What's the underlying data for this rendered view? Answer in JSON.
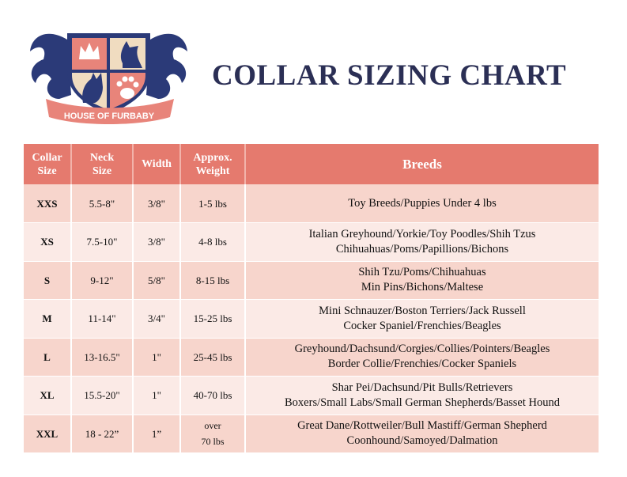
{
  "logo": {
    "text": "HOUSE OF FURBABY",
    "colors": {
      "navy": "#2b3a78",
      "coral": "#e8847a",
      "cream": "#f0dcc0"
    }
  },
  "title": "COLLAR SIZING CHART",
  "colors": {
    "header": "#e57a6e",
    "row_odd": "#f7d5cc",
    "row_even": "#fbeae6",
    "title": "#2b2f55"
  },
  "table": {
    "headers": [
      [
        "Collar",
        "Size"
      ],
      [
        "Neck",
        "Size"
      ],
      [
        "Width"
      ],
      [
        "Approx.",
        "Weight"
      ],
      [
        "Breeds"
      ]
    ],
    "rows": [
      {
        "size": "XXS",
        "neck": "5.5-8\"",
        "width": "3/8\"",
        "weight": [
          "1-5 lbs"
        ],
        "breeds": [
          "Toy Breeds/Puppies Under 4 lbs"
        ]
      },
      {
        "size": "XS",
        "neck": "7.5-10\"",
        "width": "3/8\"",
        "weight": [
          "4-8 lbs"
        ],
        "breeds": [
          "Italian Greyhound/Yorkie/Toy Poodles/Shih Tzus",
          "Chihuahuas/Poms/Papillions/Bichons"
        ]
      },
      {
        "size": "S",
        "neck": "9-12\"",
        "width": "5/8\"",
        "weight": [
          "8-15 lbs"
        ],
        "breeds": [
          "Shih Tzu/Poms/Chihuahuas",
          "Min Pins/Bichons/Maltese"
        ]
      },
      {
        "size": "M",
        "neck": "11-14\"",
        "width": "3/4\"",
        "weight": [
          "15-25 lbs"
        ],
        "breeds": [
          "Mini Schnauzer/Boston Terriers/Jack Russell",
          "Cocker Spaniel/Frenchies/Beagles"
        ]
      },
      {
        "size": "L",
        "neck": "13-16.5\"",
        "width": "1\"",
        "weight": [
          "25-45 lbs"
        ],
        "breeds": [
          "Greyhound/Dachsund/Corgies/Collies/Pointers/Beagles",
          "Border Collie/Frenchies/Cocker Spaniels"
        ]
      },
      {
        "size": "XL",
        "neck": "15.5-20\"",
        "width": "1\"",
        "weight": [
          "40-70 lbs"
        ],
        "breeds": [
          "Shar Pei/Dachsund/Pit Bulls/Retrievers",
          "Boxers/Small Labs/Small German Shepherds/Basset Hound"
        ]
      },
      {
        "size": "XXL",
        "neck": "18 - 22”",
        "width": "1”",
        "weight": [
          "over",
          "70 lbs"
        ],
        "breeds": [
          "Great Dane/Rottweiler/Bull Mastiff/German Shepherd",
          "Coonhound/Samoyed/Dalmation"
        ]
      }
    ]
  }
}
